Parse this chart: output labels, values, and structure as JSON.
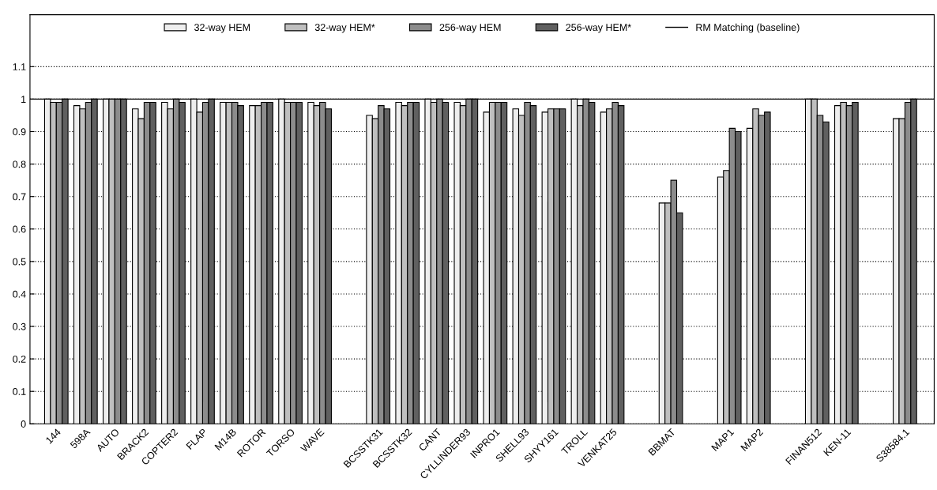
{
  "chart_data": {
    "type": "bar",
    "categories": [
      "144",
      "598A",
      "AUTO",
      "BRACK2",
      "COPTER2",
      "FLAP",
      "M14B",
      "ROTOR",
      "TORSO",
      "WAVE",
      null,
      "BCSSTK31",
      "BCSSTK32",
      "CANT",
      "CYLLINDER93",
      "INPRO1",
      "SHELL93",
      "SHYY161",
      "TROLL",
      "VENKAT25",
      null,
      "BBMAT",
      null,
      "MAP1",
      "MAP2",
      null,
      "FINAN512",
      "KEN-11",
      null,
      "S38584.1"
    ],
    "series": [
      {
        "name": "32-way HEM",
        "color": "#eeeeee",
        "values": [
          1,
          0.98,
          1,
          0.97,
          0.99,
          1,
          0.99,
          0.98,
          1,
          0.99,
          null,
          0.95,
          0.99,
          1,
          0.99,
          0.96,
          0.97,
          0.96,
          1,
          0.96,
          null,
          0.68,
          null,
          0.76,
          0.91,
          null,
          1,
          0.98,
          null,
          0.94
        ]
      },
      {
        "name": "32-way HEM*",
        "color": "#bfbfbf",
        "values": [
          0.99,
          0.97,
          1,
          0.94,
          0.97,
          0.96,
          0.99,
          0.98,
          0.99,
          0.98,
          null,
          0.94,
          0.98,
          0.99,
          0.98,
          0.99,
          0.95,
          0.97,
          0.98,
          0.97,
          null,
          0.68,
          null,
          0.78,
          0.97,
          null,
          1,
          0.99,
          null,
          0.94
        ]
      },
      {
        "name": "256-way HEM",
        "color": "#8c8c8c",
        "values": [
          0.99,
          0.99,
          1,
          0.99,
          1,
          0.99,
          0.99,
          0.99,
          0.99,
          0.99,
          null,
          0.98,
          0.99,
          1,
          1,
          0.99,
          0.99,
          0.97,
          1,
          0.99,
          null,
          0.75,
          null,
          0.91,
          0.95,
          null,
          0.95,
          0.98,
          null,
          0.99
        ]
      },
      {
        "name": "256-way HEM*",
        "color": "#606060",
        "values": [
          1,
          1,
          1,
          0.99,
          0.99,
          1,
          0.98,
          0.99,
          0.99,
          0.97,
          null,
          0.97,
          0.99,
          0.99,
          1,
          0.99,
          0.98,
          0.97,
          0.99,
          0.98,
          null,
          0.65,
          null,
          0.9,
          0.96,
          null,
          0.93,
          0.99,
          null,
          1
        ]
      }
    ],
    "ylim": [
      0,
      1.26
    ],
    "yticks": [
      0,
      0.1,
      0.2,
      0.3,
      0.4,
      0.5,
      0.6,
      0.7,
      0.8,
      0.9,
      1,
      1.1
    ],
    "ref_lines": [
      {
        "axis": "y",
        "value": 1,
        "label": "RM Matching (baseline)",
        "color": "#000000",
        "line_style": "solid"
      }
    ],
    "grid": "y",
    "legend": "top"
  }
}
